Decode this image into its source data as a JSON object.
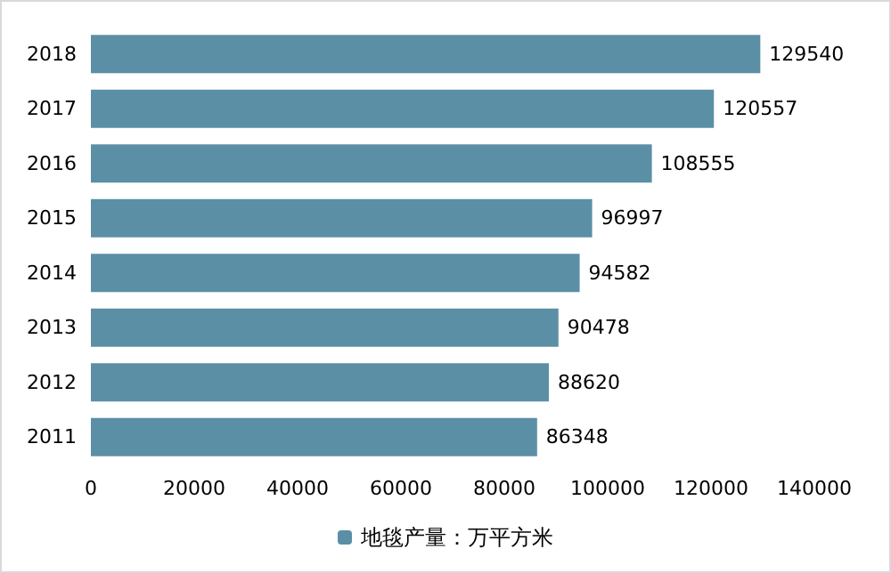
{
  "chart_data": {
    "type": "bar",
    "orientation": "horizontal",
    "categories": [
      "2018",
      "2017",
      "2016",
      "2015",
      "2014",
      "2013",
      "2012",
      "2011"
    ],
    "series": [
      {
        "name": "地毯产量：万平方米",
        "color": "#5b8fa6",
        "values": [
          129540,
          120557,
          108555,
          96997,
          94582,
          90478,
          88620,
          86348
        ]
      }
    ],
    "xlim": [
      0,
      140000
    ],
    "xticks": [
      0,
      20000,
      40000,
      60000,
      80000,
      100000,
      120000,
      140000
    ],
    "data_labels": true,
    "grid": false,
    "legend": "bottom"
  }
}
